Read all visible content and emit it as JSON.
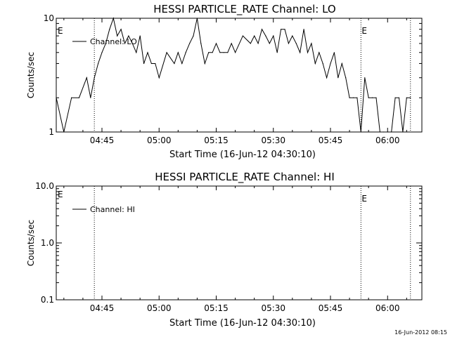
{
  "footer": {
    "timestamp": "16-Jun-2012 08:15"
  },
  "chart_data": [
    {
      "type": "line",
      "title": "HESSI PARTICLE_RATE Channel: LO",
      "xlabel": "Start Time (16-Jun-12 04:30:10)",
      "ylabel": "Counts/sec",
      "yscale": "log",
      "ylim": [
        1,
        10
      ],
      "xlim": [
        "04:33",
        "06:09"
      ],
      "x_ticks": [
        "04:45",
        "05:00",
        "05:15",
        "05:30",
        "05:45",
        "06:00"
      ],
      "y_ticks": [
        "1",
        "10"
      ],
      "event_markers": [
        {
          "time": "04:43",
          "label": ""
        },
        {
          "time": "05:53",
          "label": "E"
        },
        {
          "time": "06:06",
          "label": ""
        }
      ],
      "corner_label": "E",
      "legend": {
        "position": "top-left",
        "entries": [
          "Channel: LO"
        ]
      },
      "series": [
        {
          "name": "Channel: LO",
          "x": [
            "04:33",
            "04:35",
            "04:37",
            "04:39",
            "04:41",
            "04:42",
            "04:43",
            "04:44",
            "04:45",
            "04:46",
            "04:47",
            "04:48",
            "04:49",
            "04:50",
            "04:51",
            "04:52",
            "04:53",
            "04:54",
            "04:55",
            "04:56",
            "04:57",
            "04:58",
            "04:59",
            "05:00",
            "05:02",
            "05:04",
            "05:05",
            "05:06",
            "05:07",
            "05:08",
            "05:09",
            "05:10",
            "05:11",
            "05:12",
            "05:13",
            "05:14",
            "05:15",
            "05:16",
            "05:17",
            "05:18",
            "05:19",
            "05:20",
            "05:22",
            "05:24",
            "05:25",
            "05:26",
            "05:27",
            "05:28",
            "05:29",
            "05:30",
            "05:31",
            "05:32",
            "05:33",
            "05:34",
            "05:35",
            "05:36",
            "05:37",
            "05:38",
            "05:39",
            "05:40",
            "05:41",
            "05:42",
            "05:43",
            "05:44",
            "05:45",
            "05:46",
            "05:47",
            "05:48",
            "05:49",
            "05:50",
            "05:51",
            "05:52",
            "05:53",
            "05:54",
            "05:55",
            "05:56",
            "05:57",
            "05:58",
            "05:59",
            "06:00",
            "06:01",
            "06:02",
            "06:03",
            "06:04",
            "06:05",
            "06:06"
          ],
          "y": [
            2,
            1,
            2,
            2,
            3,
            2,
            3,
            4,
            5,
            6,
            8,
            10,
            7,
            8,
            6,
            7,
            6,
            5,
            7,
            4,
            5,
            4,
            4,
            3,
            5,
            4,
            5,
            4,
            5,
            6,
            7,
            10,
            6,
            4,
            5,
            5,
            6,
            5,
            5,
            5,
            6,
            5,
            7,
            6,
            7,
            6,
            8,
            7,
            6,
            7,
            5,
            8,
            8,
            6,
            7,
            6,
            5,
            8,
            5,
            6,
            4,
            5,
            4,
            3,
            4,
            5,
            3,
            4,
            3,
            2,
            2,
            2,
            1,
            3,
            2,
            2,
            2,
            1,
            1,
            1,
            1,
            2,
            2,
            1,
            2,
            2
          ]
        }
      ]
    },
    {
      "type": "line",
      "title": "HESSI PARTICLE_RATE Channel: HI",
      "xlabel": "Start Time (16-Jun-12 04:30:10)",
      "ylabel": "Counts/sec",
      "yscale": "log",
      "ylim": [
        0.1,
        10
      ],
      "xlim": [
        "04:33",
        "06:09"
      ],
      "x_ticks": [
        "04:45",
        "05:00",
        "05:15",
        "05:30",
        "05:45",
        "06:00"
      ],
      "y_ticks": [
        "0.1",
        "1.0",
        "10.0"
      ],
      "event_markers": [
        {
          "time": "04:43",
          "label": ""
        },
        {
          "time": "05:53",
          "label": "E"
        },
        {
          "time": "06:06",
          "label": ""
        }
      ],
      "corner_label": "E",
      "legend": {
        "position": "top-left",
        "entries": [
          "Channel: HI"
        ]
      },
      "series": [
        {
          "name": "Channel: HI",
          "x": [],
          "y": []
        }
      ]
    }
  ]
}
